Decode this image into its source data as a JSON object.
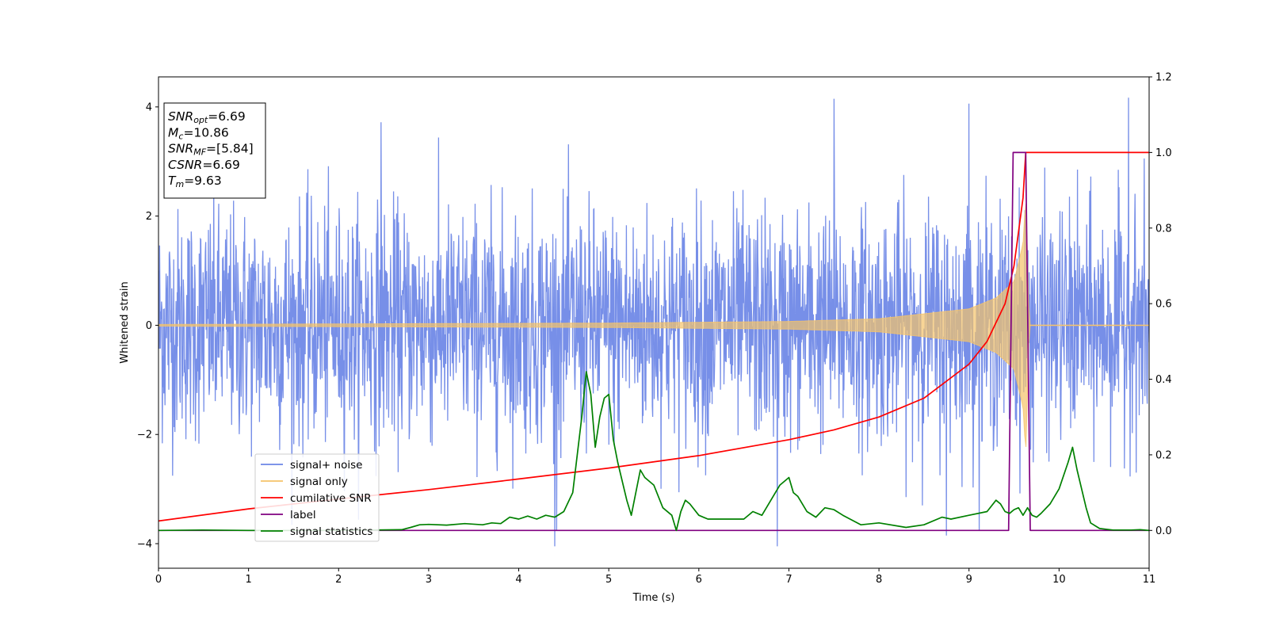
{
  "chart_data": {
    "type": "line",
    "xlabel": "Time (s)",
    "ylabel": "Whitened strain",
    "xlim": [
      0,
      11
    ],
    "ylim": [
      -4.45,
      4.55
    ],
    "y2lim": [
      -0.1,
      1.2
    ],
    "x_ticks": [
      "0",
      "1",
      "2",
      "3",
      "4",
      "5",
      "6",
      "7",
      "8",
      "9",
      "10",
      "11"
    ],
    "y_ticks": [
      "−4",
      "−2",
      "0",
      "2",
      "4"
    ],
    "y2_ticks": [
      "0.0",
      "0.2",
      "0.4",
      "0.6",
      "0.8",
      "1.0",
      "1.2"
    ],
    "grid": false,
    "legend_position": "lower-left",
    "annotation": [
      {
        "base": "SNR",
        "sub": "opt",
        "value": "=6.69"
      },
      {
        "base": "M",
        "sub": "c",
        "value": "=10.86"
      },
      {
        "base": "SNR",
        "sub": "MF",
        "value": "=[5.84]"
      },
      {
        "base": "CSNR",
        "sub": "",
        "value": "=6.69"
      },
      {
        "base": "T",
        "sub": "m",
        "value": "=9.63"
      }
    ],
    "series": [
      {
        "name": "signal+ noise",
        "color": "#6b86e6",
        "axis": "left",
        "noise_std": 1.0,
        "noise_peak": 4.15,
        "noise_trough": -4.05,
        "notable_peaks": [
          [
            2.47,
            3.72
          ],
          [
            7.5,
            4.15
          ],
          [
            9.0,
            4.06
          ],
          [
            10.77,
            4.17
          ],
          [
            4.4,
            -4.05
          ],
          [
            6.87,
            -4.05
          ],
          [
            8.75,
            -3.85
          ]
        ]
      },
      {
        "name": "signal only",
        "color": "#f5c36a",
        "axis": "left",
        "chirp_merger_time": 9.63,
        "amplitude_points": [
          [
            0,
            0.015
          ],
          [
            5,
            0.04
          ],
          [
            7,
            0.07
          ],
          [
            8,
            0.12
          ],
          [
            9,
            0.3
          ],
          [
            9.3,
            0.5
          ],
          [
            9.5,
            0.8
          ],
          [
            9.6,
            1.5
          ],
          [
            9.63,
            2.4
          ],
          [
            9.67,
            0
          ]
        ]
      },
      {
        "name": "cumilative SNR",
        "color": "#ff0000",
        "axis": "right",
        "x": [
          0,
          1,
          2,
          3,
          4,
          5,
          6,
          7,
          7.5,
          8,
          8.5,
          9,
          9.2,
          9.4,
          9.5,
          9.6,
          9.63,
          11
        ],
        "values": [
          0.025,
          0.057,
          0.083,
          0.108,
          0.136,
          0.165,
          0.198,
          0.24,
          0.266,
          0.3,
          0.35,
          0.44,
          0.5,
          0.6,
          0.7,
          0.88,
          1.0,
          1.0
        ]
      },
      {
        "name": "label",
        "color": "#800080",
        "axis": "right",
        "x": [
          0,
          9.44,
          9.49,
          9.63,
          9.68,
          11
        ],
        "values": [
          0,
          0,
          1.0,
          1.0,
          0,
          0
        ]
      },
      {
        "name": "signal statistics",
        "color": "#008000",
        "axis": "right",
        "x": [
          0,
          0.5,
          1,
          2,
          2.7,
          2.8,
          2.9,
          3.0,
          3.2,
          3.4,
          3.6,
          3.7,
          3.8,
          3.9,
          4.0,
          4.1,
          4.2,
          4.3,
          4.4,
          4.5,
          4.6,
          4.65,
          4.7,
          4.75,
          4.8,
          4.85,
          4.9,
          4.95,
          5.0,
          5.05,
          5.1,
          5.2,
          5.25,
          5.35,
          5.4,
          5.5,
          5.6,
          5.7,
          5.75,
          5.8,
          5.85,
          5.9,
          6.0,
          6.1,
          6.3,
          6.5,
          6.6,
          6.7,
          6.8,
          6.9,
          7.0,
          7.05,
          7.1,
          7.2,
          7.3,
          7.4,
          7.5,
          7.6,
          7.8,
          8.0,
          8.3,
          8.5,
          8.7,
          8.8,
          9.0,
          9.2,
          9.3,
          9.35,
          9.4,
          9.45,
          9.5,
          9.55,
          9.6,
          9.65,
          9.7,
          9.75,
          9.8,
          9.9,
          10.0,
          10.1,
          10.15,
          10.2,
          10.3,
          10.35,
          10.45,
          10.6,
          10.8,
          10.9,
          11.0
        ],
        "values": [
          0.0,
          0.001,
          0.0,
          0.0,
          0.002,
          0.008,
          0.015,
          0.016,
          0.014,
          0.018,
          0.015,
          0.02,
          0.018,
          0.035,
          0.03,
          0.038,
          0.03,
          0.04,
          0.035,
          0.05,
          0.1,
          0.2,
          0.3,
          0.42,
          0.36,
          0.22,
          0.3,
          0.35,
          0.36,
          0.24,
          0.18,
          0.08,
          0.04,
          0.16,
          0.14,
          0.12,
          0.06,
          0.04,
          0.0,
          0.05,
          0.08,
          0.07,
          0.04,
          0.03,
          0.03,
          0.03,
          0.05,
          0.04,
          0.08,
          0.12,
          0.14,
          0.1,
          0.09,
          0.05,
          0.035,
          0.06,
          0.055,
          0.04,
          0.015,
          0.02,
          0.008,
          0.015,
          0.035,
          0.03,
          0.04,
          0.05,
          0.08,
          0.07,
          0.05,
          0.045,
          0.055,
          0.06,
          0.04,
          0.06,
          0.04,
          0.035,
          0.045,
          0.07,
          0.11,
          0.18,
          0.22,
          0.16,
          0.06,
          0.02,
          0.005,
          0.001,
          0.001,
          0.002,
          0.0
        ]
      }
    ]
  }
}
